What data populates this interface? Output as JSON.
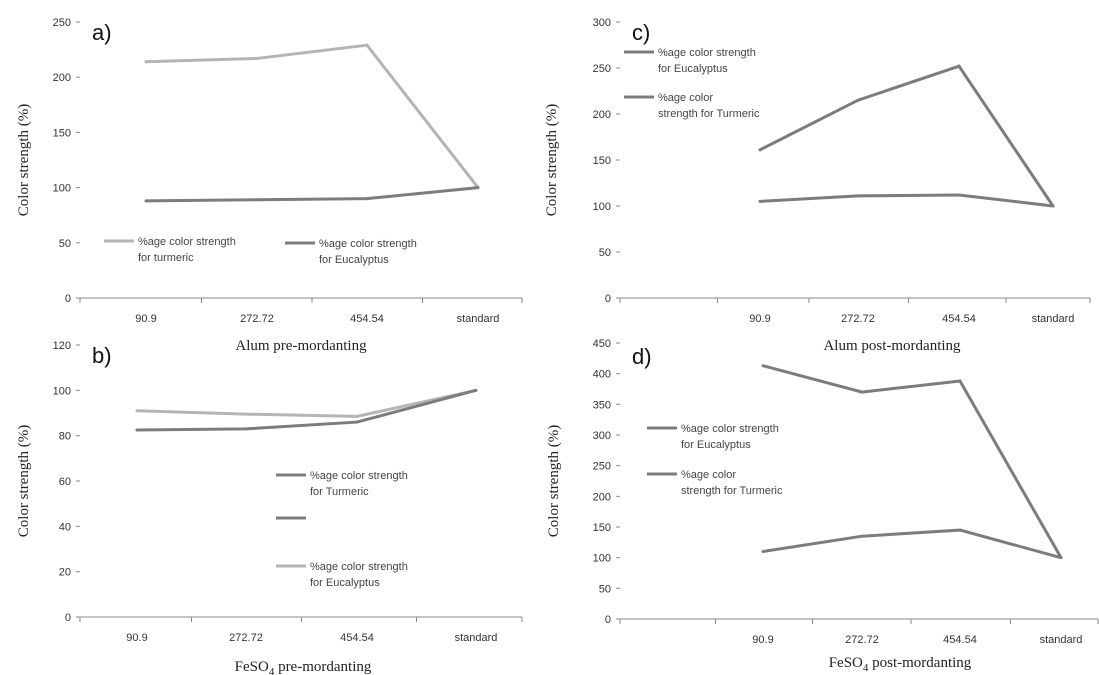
{
  "chart_data": [
    {
      "id": "a",
      "type": "line",
      "panel_label": "a)",
      "xlabel": "Alum pre-mordanting",
      "ylabel": "Color strength (%)",
      "categories": [
        "90.9",
        "272.72",
        "454.54",
        "standard"
      ],
      "ylim": [
        0,
        250
      ],
      "yticks": [
        0,
        50,
        100,
        150,
        200,
        250
      ],
      "series": [
        {
          "name": "%age color strength for turmeric",
          "values": [
            214,
            217,
            229,
            100
          ],
          "color": "#b4b4b4"
        },
        {
          "name": "%age color strength for Eucalyptus",
          "values": [
            88,
            89,
            90,
            100
          ],
          "color": "#7c7c7c"
        }
      ],
      "legend": [
        {
          "lines": [
            "%age color strength",
            "for turmeric"
          ],
          "color": "#b4b4b4"
        },
        {
          "lines": [
            "%age color strength",
            "for Eucalyptus"
          ],
          "color": "#7c7c7c"
        }
      ],
      "legend_position": "bottom-left"
    },
    {
      "id": "b",
      "type": "line",
      "panel_label": "b)",
      "xlabel": "FeSO4 pre-mordanting",
      "ylabel": "Color strength (%)",
      "categories": [
        "90.9",
        "272.72",
        "454.54",
        "standard"
      ],
      "ylim": [
        0,
        120
      ],
      "yticks": [
        0,
        20,
        40,
        60,
        80,
        100,
        120
      ],
      "series": [
        {
          "name": "%age color strength for Eucalyptus",
          "values": [
            91,
            89.5,
            88.5,
            100
          ],
          "color": "#b4b4b4"
        },
        {
          "name": "%age color strength for Turmeric",
          "values": [
            82.5,
            83,
            86,
            100
          ],
          "color": "#7c7c7c"
        }
      ],
      "legend": [
        {
          "lines": [
            "%age color strength",
            "for Turmeric"
          ],
          "color": "#7c7c7c"
        },
        {
          "lines": [],
          "color": "#7c7c7c"
        },
        {
          "lines": [
            "%age color strength",
            "for Eucalyptus"
          ],
          "color": "#b4b4b4"
        }
      ],
      "legend_position": "center"
    },
    {
      "id": "c",
      "type": "line",
      "panel_label": "c)",
      "xlabel": "Alum post-mordanting",
      "ylabel": "Color strength (%)",
      "categories": [
        "",
        "90.9",
        "272.72",
        "454.54",
        "standard"
      ],
      "ylim": [
        0,
        300
      ],
      "yticks": [
        0,
        50,
        100,
        150,
        200,
        250,
        300
      ],
      "series": [
        {
          "name": "%age color strength for Eucalyptus",
          "values": [
            null,
            161,
            215,
            252,
            100
          ],
          "color": "#7c7c7c"
        },
        {
          "name": "%age color strength for Turmeric",
          "values": [
            null,
            105,
            111,
            112,
            100
          ],
          "color": "#7c7c7c"
        }
      ],
      "legend": [
        {
          "lines": [
            "%age color strength",
            "for Eucalyptus"
          ],
          "color": "#7c7c7c"
        },
        {
          "lines": [
            "%age color",
            "strength for Turmeric"
          ],
          "color": "#7c7c7c"
        }
      ],
      "legend_position": "top-left"
    },
    {
      "id": "d",
      "type": "line",
      "panel_label": "d)",
      "xlabel": "FeSO4 post-mordanting",
      "ylabel": "Color strength (%)",
      "categories": [
        "",
        "90.9",
        "272.72",
        "454.54",
        "standard"
      ],
      "ylim": [
        0,
        450
      ],
      "yticks": [
        0,
        50,
        100,
        150,
        200,
        250,
        300,
        350,
        400,
        450
      ],
      "series": [
        {
          "name": "%age color strength for Eucalyptus",
          "values": [
            null,
            413,
            370,
            388,
            100
          ],
          "color": "#7c7c7c"
        },
        {
          "name": "%age color strength for Turmeric",
          "values": [
            null,
            110,
            135,
            145,
            100
          ],
          "color": "#7c7c7c"
        }
      ],
      "legend": [
        {
          "lines": [
            "%age color strength",
            "for Eucalyptus"
          ],
          "color": "#7c7c7c"
        },
        {
          "lines": [
            "%age color",
            "strength for Turmeric"
          ],
          "color": "#7c7c7c"
        }
      ],
      "legend_position": "center-left"
    }
  ]
}
